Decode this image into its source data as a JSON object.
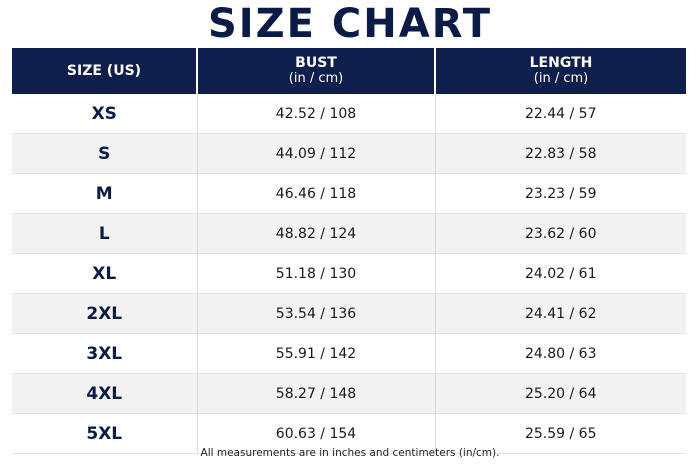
{
  "title": "SIZE CHART",
  "headers": {
    "size": "SIZE (US)",
    "bust": "BUST",
    "bust_unit": "(in / cm)",
    "length": "LENGTH",
    "length_unit": "(in / cm)"
  },
  "rows": [
    {
      "size": "XS",
      "bust": "42.52 / 108",
      "length": "22.44 / 57"
    },
    {
      "size": "S",
      "bust": "44.09 / 112",
      "length": "22.83 / 58"
    },
    {
      "size": "M",
      "bust": "46.46 / 118",
      "length": "23.23 / 59"
    },
    {
      "size": "L",
      "bust": "48.82 / 124",
      "length": "23.62 / 60"
    },
    {
      "size": "XL",
      "bust": "51.18 / 130",
      "length": "24.02 / 61"
    },
    {
      "size": "2XL",
      "bust": "53.54 / 136",
      "length": "24.41 / 62"
    },
    {
      "size": "3XL",
      "bust": "55.91 / 142",
      "length": "24.80 / 63"
    },
    {
      "size": "4XL",
      "bust": "58.27 / 148",
      "length": "25.20 / 64"
    },
    {
      "size": "5XL",
      "bust": "60.63 / 154",
      "length": "25.59 / 65"
    }
  ],
  "footnote": "All measurements are in inches and centimeters (in/cm).",
  "colors": {
    "header_bg": "#0e1f4d",
    "title": "#0b1b47",
    "stripe": "#f2f2f2"
  }
}
